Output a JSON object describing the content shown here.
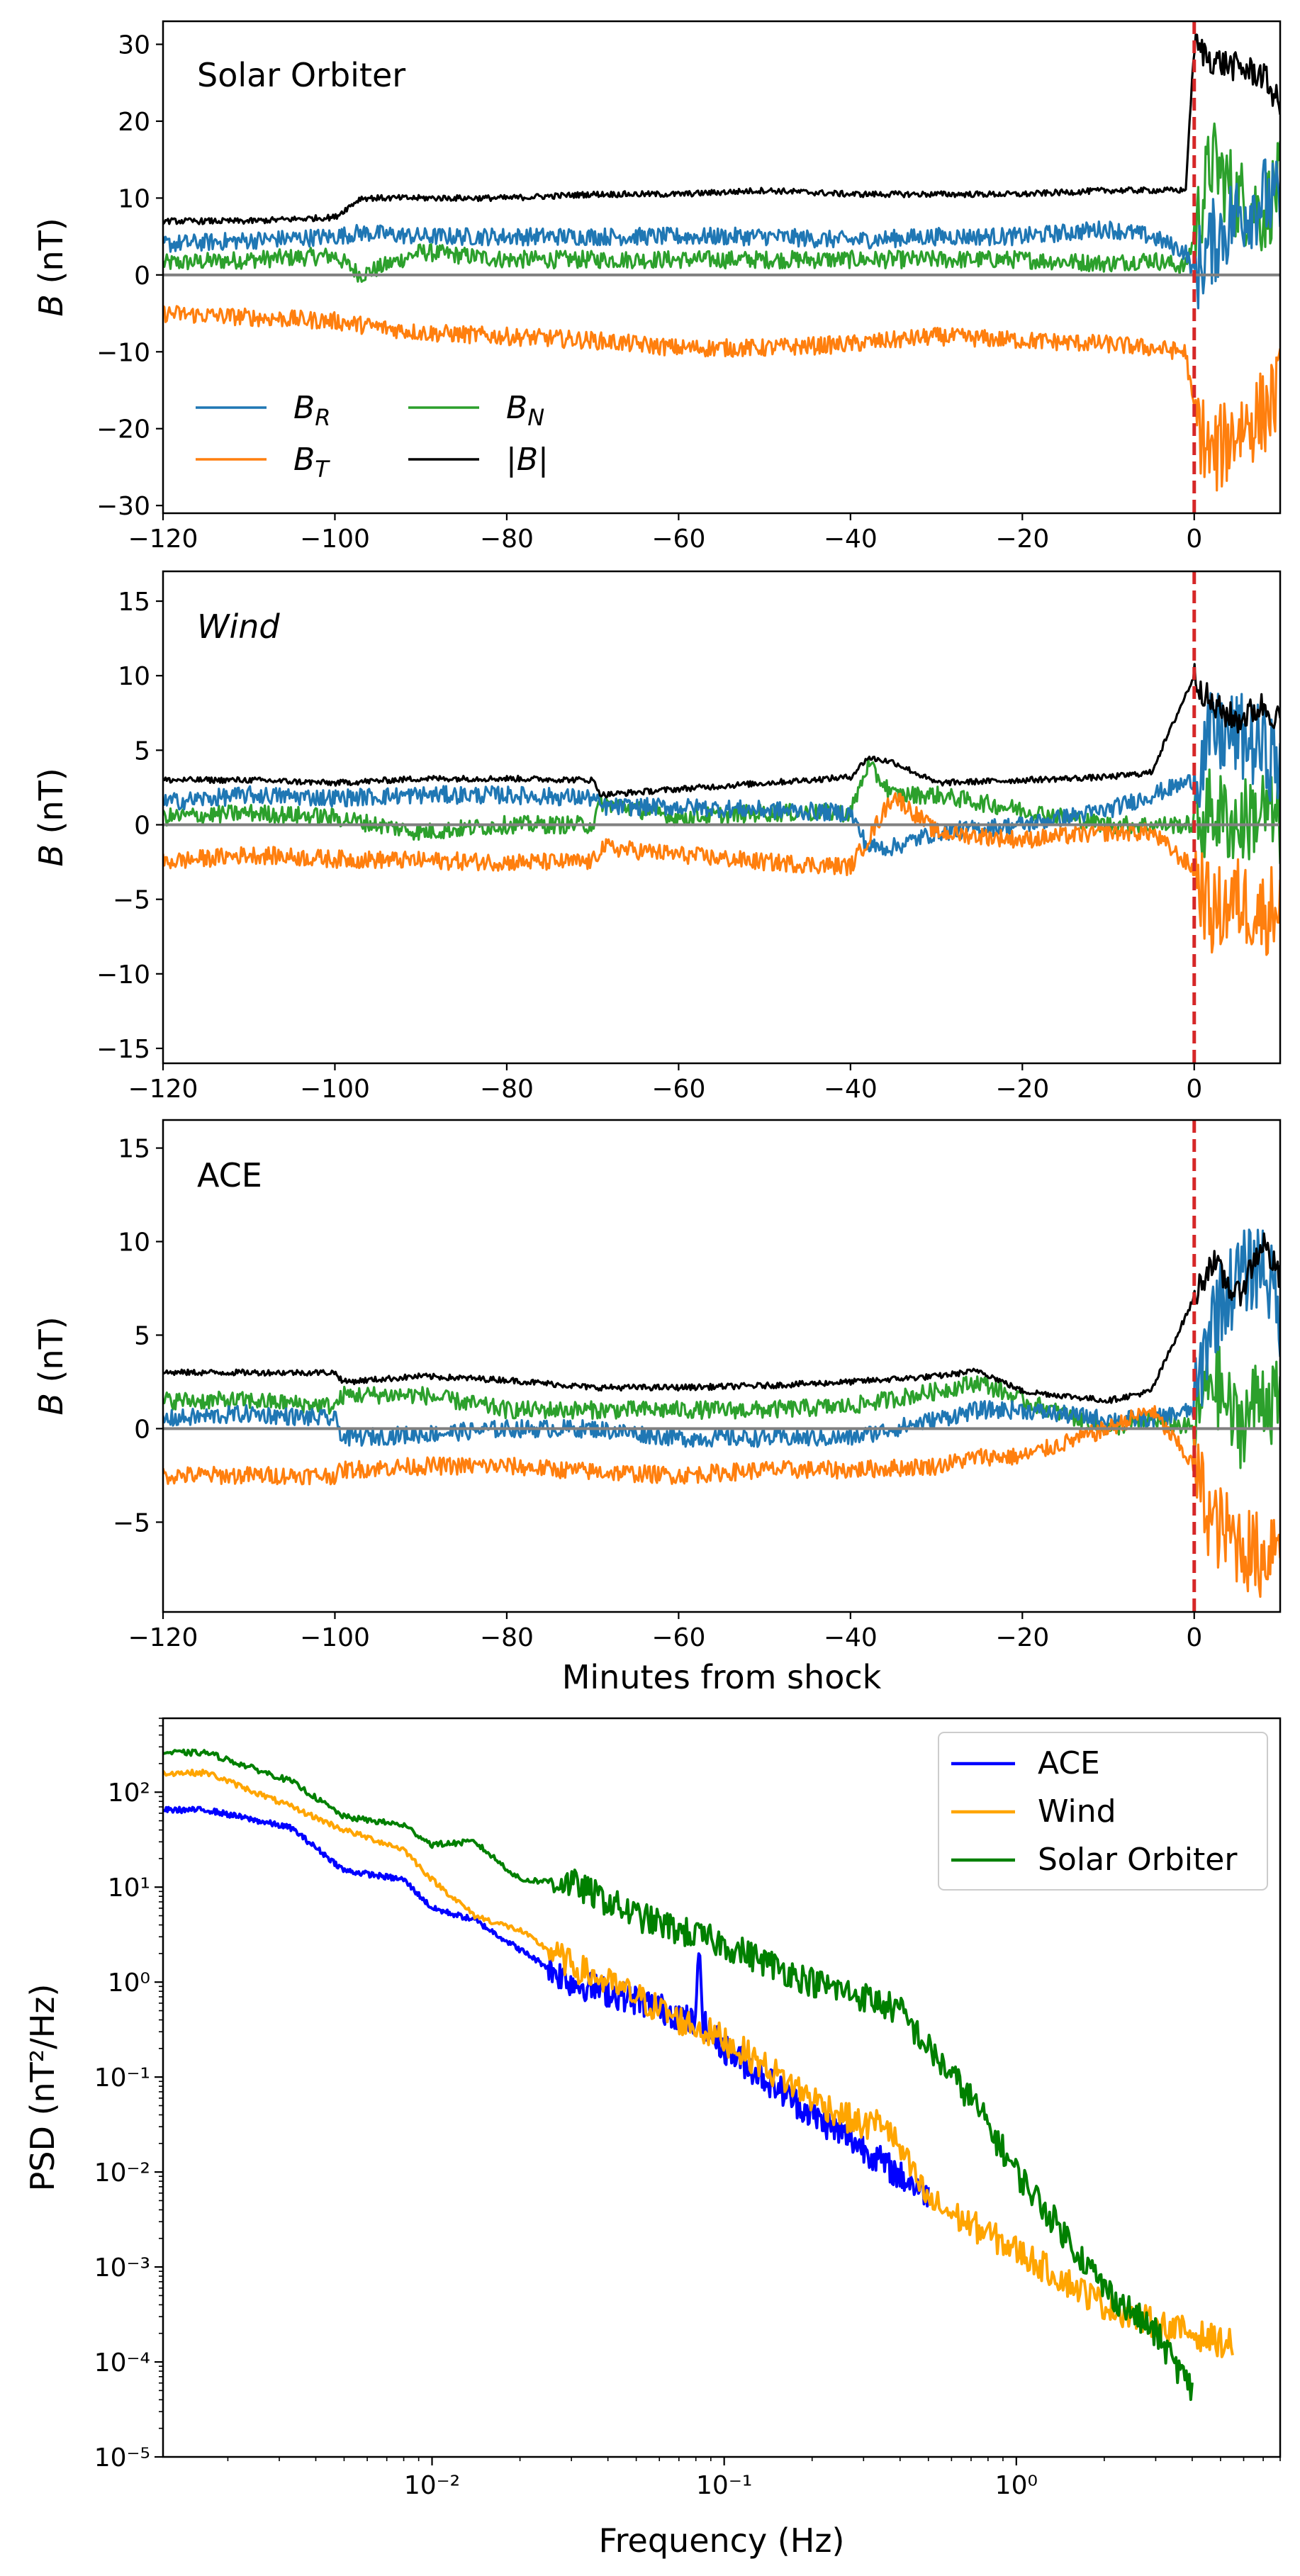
{
  "chart_data": [
    {
      "type": "line",
      "panel": "Solar Orbiter",
      "title": "Solar Orbiter",
      "xlabel": "",
      "ylabel": "B (nT)",
      "xlim": [
        -120,
        10
      ],
      "ylim": [
        -31,
        33
      ],
      "xticks": [
        -120,
        -100,
        -80,
        -60,
        -40,
        -20,
        0
      ],
      "yticks": [
        -30,
        -20,
        -10,
        0,
        10,
        20,
        30
      ],
      "shock_line_x": 0,
      "zero_line": true,
      "legend": {
        "position": "lower-left",
        "ncol": 2
      },
      "x": [
        -120,
        -110,
        -100,
        -97,
        -90,
        -80,
        -70,
        -60,
        -50,
        -40,
        -30,
        -20,
        -10,
        -5,
        -1,
        0,
        2,
        5,
        8,
        10
      ],
      "series": [
        {
          "name": "B_R",
          "color": "#1f77b4",
          "values": [
            4,
            4.5,
            5,
            5.5,
            5,
            5,
            5,
            5,
            5,
            4.5,
            5,
            5,
            6,
            5,
            3,
            0,
            4,
            8,
            10,
            9
          ]
        },
        {
          "name": "B_T",
          "color": "#ff7f0e",
          "values": [
            -5,
            -5.5,
            -6,
            -6.5,
            -7.5,
            -8,
            -8.5,
            -9.5,
            -9.5,
            -9,
            -8,
            -8.5,
            -9,
            -9.5,
            -10,
            -18,
            -24,
            -20,
            -18,
            -15
          ]
        },
        {
          "name": "B_N",
          "color": "#2ca02c",
          "values": [
            1.5,
            2,
            2.5,
            0,
            3,
            2,
            2,
            2,
            2,
            2,
            2,
            2,
            1.5,
            2,
            1,
            5,
            15,
            10,
            8,
            12
          ]
        },
        {
          "name": "|B|",
          "color": "#000000",
          "values": [
            7,
            7,
            7.5,
            10,
            10,
            10,
            10.5,
            10.5,
            11,
            10.5,
            10.5,
            10.5,
            11,
            11,
            11,
            30,
            28,
            27,
            26,
            22
          ]
        }
      ]
    },
    {
      "type": "line",
      "panel": "Wind",
      "title": "Wind",
      "xlabel": "",
      "ylabel": "B (nT)",
      "xlim": [
        -120,
        10
      ],
      "ylim": [
        -16,
        17
      ],
      "xticks": [
        -120,
        -100,
        -80,
        -60,
        -40,
        -20,
        0
      ],
      "yticks": [
        -15,
        -10,
        -5,
        0,
        5,
        10,
        15
      ],
      "shock_line_x": 0,
      "zero_line": true,
      "x": [
        -120,
        -110,
        -100,
        -90,
        -80,
        -70,
        -69,
        -60,
        -50,
        -40,
        -38,
        -35,
        -30,
        -20,
        -10,
        -5,
        0,
        2,
        5,
        8,
        10
      ],
      "series": [
        {
          "name": "B_R",
          "color": "#1f77b4",
          "values": [
            1.5,
            2,
            1.8,
            2,
            2,
            1.8,
            1.2,
            1.2,
            1.0,
            0.8,
            -1.5,
            -1.5,
            -0.5,
            0,
            1,
            2,
            3,
            6,
            6,
            5,
            4
          ]
        },
        {
          "name": "B_T",
          "color": "#ff7f0e",
          "values": [
            -2.5,
            -2,
            -2.3,
            -2.4,
            -2.5,
            -2.5,
            -1.5,
            -2,
            -2.5,
            -2.8,
            -1,
            2,
            -0.5,
            -1,
            -0.5,
            -0.5,
            -3,
            -6,
            -5,
            -6,
            -5
          ]
        },
        {
          "name": "B_N",
          "color": "#2ca02c",
          "values": [
            0.5,
            0.8,
            0.5,
            -0.5,
            0,
            0,
            1.5,
            0.5,
            0.8,
            0.8,
            4,
            2,
            2,
            1,
            0,
            0,
            0,
            1,
            0,
            1,
            0
          ]
        },
        {
          "name": "|B|",
          "color": "#000000",
          "values": [
            3,
            3,
            2.8,
            3.1,
            3.1,
            3,
            2,
            2.4,
            2.8,
            3.2,
            4.5,
            4.2,
            2.8,
            3,
            3.2,
            3.5,
            10,
            8,
            7,
            8,
            7
          ]
        }
      ]
    },
    {
      "type": "line",
      "panel": "ACE",
      "title": "ACE",
      "xlabel": "Minutes from shock",
      "ylabel": "B (nT)",
      "xlim": [
        -120,
        10
      ],
      "ylim": [
        -9.8,
        16.5
      ],
      "xticks": [
        -120,
        -100,
        -80,
        -60,
        -40,
        -20,
        0
      ],
      "yticks": [
        -5,
        0,
        5,
        10,
        15
      ],
      "shock_line_x": 0,
      "zero_line": true,
      "x": [
        -120,
        -110,
        -100,
        -99,
        -90,
        -80,
        -70,
        -60,
        -50,
        -40,
        -30,
        -25,
        -20,
        -10,
        -5,
        0,
        2,
        5,
        8,
        10
      ],
      "series": [
        {
          "name": "B_R",
          "color": "#1f77b4",
          "values": [
            0.5,
            0.8,
            0.5,
            -0.5,
            -0.3,
            0,
            0,
            -0.5,
            -0.5,
            -0.5,
            0.5,
            1,
            1,
            0.5,
            0.5,
            1,
            6,
            8,
            9,
            6
          ]
        },
        {
          "name": "B_T",
          "color": "#ff7f0e",
          "values": [
            -2.5,
            -2.5,
            -2.5,
            -2.2,
            -2,
            -2,
            -2.3,
            -2.5,
            -2.2,
            -2.2,
            -2,
            -1.5,
            -1.5,
            0,
            1,
            -2,
            -5,
            -6,
            -7,
            -5
          ]
        },
        {
          "name": "B_N",
          "color": "#2ca02c",
          "values": [
            1.5,
            1.5,
            1.2,
            1.8,
            1.8,
            1,
            1,
            1,
            1,
            1.2,
            2,
            2.5,
            1.5,
            0,
            0.5,
            0,
            3,
            0,
            2,
            1
          ]
        },
        {
          "name": "|B|",
          "color": "#000000",
          "values": [
            3,
            3,
            3,
            2.5,
            2.8,
            2.6,
            2.2,
            2.2,
            2.3,
            2.5,
            2.8,
            3.1,
            2,
            1.5,
            2,
            7,
            9,
            7,
            10,
            8
          ]
        }
      ]
    },
    {
      "type": "line",
      "xlabel": "Frequency (Hz)",
      "ylabel": "PSD (nT²/Hz)",
      "xscale": "log",
      "yscale": "log",
      "xlim": [
        0.0012,
        8
      ],
      "ylim": [
        1e-05,
        600
      ],
      "xticks": [
        0.01,
        0.1,
        1
      ],
      "xtick_labels": [
        "10⁻²",
        "10⁻¹",
        "10⁰"
      ],
      "yticks": [
        1e-05,
        0.0001,
        0.001,
        0.01,
        0.1,
        1,
        10,
        100
      ],
      "ytick_labels": [
        "10⁻⁵",
        "10⁻⁴",
        "10⁻³",
        "10⁻²",
        "10⁻¹",
        "10⁰",
        "10¹",
        "10²"
      ],
      "legend": {
        "position": "top-right"
      },
      "series": [
        {
          "name": "ACE",
          "color": "#0000ff",
          "x": [
            0.0012,
            0.0017,
            0.0033,
            0.005,
            0.008,
            0.01,
            0.014,
            0.02,
            0.03,
            0.05,
            0.07,
            0.08,
            0.082,
            0.085,
            0.1,
            0.15,
            0.2,
            0.3,
            0.4,
            0.5
          ],
          "values": [
            65,
            65,
            42,
            15,
            12,
            6,
            4.5,
            2.2,
            1.0,
            0.65,
            0.45,
            0.35,
            2.6,
            0.35,
            0.2,
            0.08,
            0.04,
            0.018,
            0.009,
            0.006
          ]
        },
        {
          "name": "Wind",
          "color": "#ffa500",
          "x": [
            0.0012,
            0.0017,
            0.0033,
            0.005,
            0.008,
            0.01,
            0.014,
            0.02,
            0.03,
            0.05,
            0.07,
            0.1,
            0.2,
            0.3,
            0.35,
            0.5,
            1,
            2,
            3,
            4,
            5.5
          ],
          "values": [
            160,
            160,
            70,
            40,
            25,
            12,
            5,
            3.5,
            1.5,
            0.7,
            0.4,
            0.25,
            0.06,
            0.03,
            0.035,
            0.005,
            0.0015,
            0.0004,
            0.00025,
            0.0002,
            0.00015
          ]
        },
        {
          "name": "Solar Orbiter",
          "color": "#008000",
          "x": [
            0.0012,
            0.0017,
            0.0033,
            0.005,
            0.008,
            0.01,
            0.014,
            0.02,
            0.03,
            0.05,
            0.07,
            0.1,
            0.2,
            0.3,
            0.4,
            0.5,
            0.7,
            1,
            1.5,
            2,
            3,
            4
          ],
          "values": [
            260,
            260,
            130,
            55,
            45,
            28,
            30,
            12,
            11,
            5,
            3.5,
            2.5,
            1.0,
            0.7,
            0.5,
            0.2,
            0.06,
            0.01,
            0.002,
            0.0006,
            0.0002,
            5e-05
          ]
        }
      ]
    }
  ]
}
